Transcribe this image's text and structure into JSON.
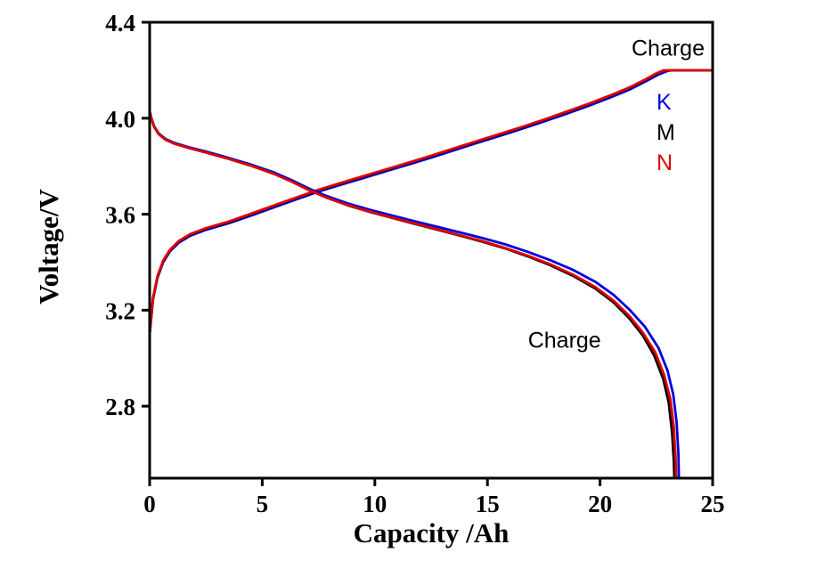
{
  "figure": {
    "background": "#ffffff"
  },
  "chart_data": {
    "type": "line",
    "title": "",
    "xlabel": "Capacity /Ah",
    "ylabel": "Voltage/V",
    "xlim": [
      0,
      25
    ],
    "ylim": [
      2.5,
      4.4
    ],
    "xticks": [
      "0",
      "5",
      "10",
      "15",
      "20",
      "25"
    ],
    "yticks": [
      "2.8",
      "3.2",
      "3.6",
      "4.0",
      "4.4"
    ],
    "grid": false,
    "axis_color": "#000000",
    "legend_position": "upper-right-inside",
    "annotations": [
      {
        "text": "Charge",
        "x": 21.4,
        "y": 4.29
      },
      {
        "text": "Charge",
        "x": 16.8,
        "y": 3.07
      }
    ],
    "legend": [
      {
        "label": "K",
        "color": "#0000dd"
      },
      {
        "label": "M",
        "color": "#000000"
      },
      {
        "label": "N",
        "color": "#e00000"
      }
    ],
    "series": [
      {
        "name": "K charge",
        "color": "#0000dd",
        "points": [
          [
            0,
            3.1
          ],
          [
            0.15,
            3.245
          ],
          [
            0.35,
            3.335
          ],
          [
            0.6,
            3.4
          ],
          [
            0.9,
            3.445
          ],
          [
            1.3,
            3.482
          ],
          [
            1.8,
            3.51
          ],
          [
            2.5,
            3.535
          ],
          [
            3.5,
            3.562
          ],
          [
            4.5,
            3.594
          ],
          [
            5.5,
            3.628
          ],
          [
            6.5,
            3.661
          ],
          [
            7.5,
            3.694
          ],
          [
            8.5,
            3.723
          ],
          [
            9.5,
            3.751
          ],
          [
            10.5,
            3.779
          ],
          [
            11.5,
            3.807
          ],
          [
            12.5,
            3.836
          ],
          [
            13.5,
            3.866
          ],
          [
            14.5,
            3.896
          ],
          [
            15.5,
            3.925
          ],
          [
            16.5,
            3.955
          ],
          [
            17.5,
            3.986
          ],
          [
            18.5,
            4.018
          ],
          [
            19.5,
            4.052
          ],
          [
            20.5,
            4.088
          ],
          [
            21.3,
            4.119
          ],
          [
            22.0,
            4.152
          ],
          [
            22.6,
            4.182
          ],
          [
            23.0,
            4.197
          ],
          [
            23.2,
            4.2
          ],
          [
            25,
            4.2
          ]
        ]
      },
      {
        "name": "M charge",
        "color": "#000000",
        "points": [
          [
            0,
            3.1
          ],
          [
            0.15,
            3.25
          ],
          [
            0.35,
            3.34
          ],
          [
            0.6,
            3.405
          ],
          [
            0.9,
            3.45
          ],
          [
            1.3,
            3.487
          ],
          [
            1.8,
            3.515
          ],
          [
            2.5,
            3.54
          ],
          [
            3.5,
            3.567
          ],
          [
            4.5,
            3.6
          ],
          [
            5.5,
            3.634
          ],
          [
            6.5,
            3.667
          ],
          [
            7.5,
            3.7
          ],
          [
            8.5,
            3.729
          ],
          [
            9.5,
            3.757
          ],
          [
            10.5,
            3.785
          ],
          [
            11.5,
            3.813
          ],
          [
            12.5,
            3.842
          ],
          [
            13.5,
            3.872
          ],
          [
            14.5,
            3.902
          ],
          [
            15.5,
            3.931
          ],
          [
            16.5,
            3.961
          ],
          [
            17.5,
            3.992
          ],
          [
            18.5,
            4.025
          ],
          [
            19.5,
            4.059
          ],
          [
            20.5,
            4.095
          ],
          [
            21.3,
            4.126
          ],
          [
            22.0,
            4.159
          ],
          [
            22.5,
            4.185
          ],
          [
            22.8,
            4.198
          ],
          [
            23.0,
            4.2
          ],
          [
            25,
            4.2
          ]
        ]
      },
      {
        "name": "N charge",
        "color": "#e00000",
        "points": [
          [
            0,
            3.102
          ],
          [
            0.15,
            3.252
          ],
          [
            0.35,
            3.342
          ],
          [
            0.6,
            3.407
          ],
          [
            0.9,
            3.452
          ],
          [
            1.3,
            3.489
          ],
          [
            1.8,
            3.517
          ],
          [
            2.5,
            3.542
          ],
          [
            3.5,
            3.569
          ],
          [
            4.5,
            3.602
          ],
          [
            5.5,
            3.636
          ],
          [
            6.5,
            3.669
          ],
          [
            7.5,
            3.702
          ],
          [
            8.5,
            3.731
          ],
          [
            9.5,
            3.759
          ],
          [
            10.5,
            3.787
          ],
          [
            11.5,
            3.815
          ],
          [
            12.5,
            3.844
          ],
          [
            13.5,
            3.874
          ],
          [
            14.5,
            3.904
          ],
          [
            15.5,
            3.933
          ],
          [
            16.5,
            3.963
          ],
          [
            17.5,
            3.994
          ],
          [
            18.5,
            4.027
          ],
          [
            19.5,
            4.061
          ],
          [
            20.5,
            4.097
          ],
          [
            21.3,
            4.128
          ],
          [
            22.0,
            4.161
          ],
          [
            22.5,
            4.187
          ],
          [
            22.8,
            4.199
          ],
          [
            23.0,
            4.2
          ],
          [
            25,
            4.2
          ]
        ]
      },
      {
        "name": "K discharge",
        "color": "#0000dd",
        "points": [
          [
            0,
            4.03
          ],
          [
            0.08,
            4.0
          ],
          [
            0.2,
            3.966
          ],
          [
            0.4,
            3.937
          ],
          [
            0.7,
            3.914
          ],
          [
            1.1,
            3.897
          ],
          [
            1.7,
            3.88
          ],
          [
            2.5,
            3.861
          ],
          [
            3.5,
            3.835
          ],
          [
            4.5,
            3.807
          ],
          [
            5.5,
            3.775
          ],
          [
            6.3,
            3.742
          ],
          [
            7.0,
            3.71
          ],
          [
            7.8,
            3.678
          ],
          [
            8.8,
            3.645
          ],
          [
            9.8,
            3.618
          ],
          [
            10.8,
            3.594
          ],
          [
            11.8,
            3.57
          ],
          [
            12.8,
            3.547
          ],
          [
            13.8,
            3.524
          ],
          [
            14.8,
            3.5
          ],
          [
            15.8,
            3.474
          ],
          [
            16.8,
            3.443
          ],
          [
            17.8,
            3.408
          ],
          [
            18.8,
            3.368
          ],
          [
            19.8,
            3.318
          ],
          [
            20.6,
            3.264
          ],
          [
            21.3,
            3.203
          ],
          [
            22.0,
            3.13
          ],
          [
            22.6,
            3.042
          ],
          [
            23.0,
            2.948
          ],
          [
            23.25,
            2.848
          ],
          [
            23.4,
            2.732
          ],
          [
            23.48,
            2.6
          ],
          [
            23.5,
            2.5
          ]
        ]
      },
      {
        "name": "M discharge",
        "color": "#000000",
        "points": [
          [
            0,
            4.028
          ],
          [
            0.08,
            3.998
          ],
          [
            0.2,
            3.964
          ],
          [
            0.4,
            3.934
          ],
          [
            0.7,
            3.911
          ],
          [
            1.1,
            3.894
          ],
          [
            1.7,
            3.877
          ],
          [
            2.5,
            3.857
          ],
          [
            3.5,
            3.831
          ],
          [
            4.5,
            3.802
          ],
          [
            5.5,
            3.769
          ],
          [
            6.3,
            3.736
          ],
          [
            7.0,
            3.704
          ],
          [
            7.8,
            3.671
          ],
          [
            8.8,
            3.637
          ],
          [
            9.8,
            3.609
          ],
          [
            10.8,
            3.584
          ],
          [
            11.8,
            3.559
          ],
          [
            12.8,
            3.535
          ],
          [
            13.8,
            3.51
          ],
          [
            14.8,
            3.485
          ],
          [
            15.8,
            3.457
          ],
          [
            16.8,
            3.424
          ],
          [
            17.8,
            3.387
          ],
          [
            18.8,
            3.343
          ],
          [
            19.8,
            3.29
          ],
          [
            20.6,
            3.232
          ],
          [
            21.3,
            3.166
          ],
          [
            21.9,
            3.095
          ],
          [
            22.4,
            3.012
          ],
          [
            22.8,
            2.915
          ],
          [
            23.05,
            2.815
          ],
          [
            23.2,
            2.69
          ],
          [
            23.28,
            2.565
          ],
          [
            23.3,
            2.5
          ]
        ]
      },
      {
        "name": "N discharge",
        "color": "#e00000",
        "points": [
          [
            0,
            4.028
          ],
          [
            0.08,
            3.998
          ],
          [
            0.2,
            3.964
          ],
          [
            0.4,
            3.934
          ],
          [
            0.7,
            3.911
          ],
          [
            1.1,
            3.894
          ],
          [
            1.7,
            3.877
          ],
          [
            2.5,
            3.857
          ],
          [
            3.5,
            3.831
          ],
          [
            4.5,
            3.802
          ],
          [
            5.5,
            3.769
          ],
          [
            6.3,
            3.736
          ],
          [
            7.0,
            3.704
          ],
          [
            7.8,
            3.671
          ],
          [
            8.8,
            3.638
          ],
          [
            9.8,
            3.61
          ],
          [
            10.8,
            3.585
          ],
          [
            11.8,
            3.561
          ],
          [
            12.8,
            3.537
          ],
          [
            13.8,
            3.512
          ],
          [
            14.8,
            3.487
          ],
          [
            15.8,
            3.459
          ],
          [
            16.8,
            3.427
          ],
          [
            17.8,
            3.391
          ],
          [
            18.8,
            3.348
          ],
          [
            19.8,
            3.296
          ],
          [
            20.6,
            3.24
          ],
          [
            21.3,
            3.176
          ],
          [
            21.9,
            3.107
          ],
          [
            22.45,
            3.025
          ],
          [
            22.85,
            2.93
          ],
          [
            23.12,
            2.83
          ],
          [
            23.28,
            2.71
          ],
          [
            23.36,
            2.58
          ],
          [
            23.38,
            2.5
          ]
        ]
      }
    ]
  }
}
